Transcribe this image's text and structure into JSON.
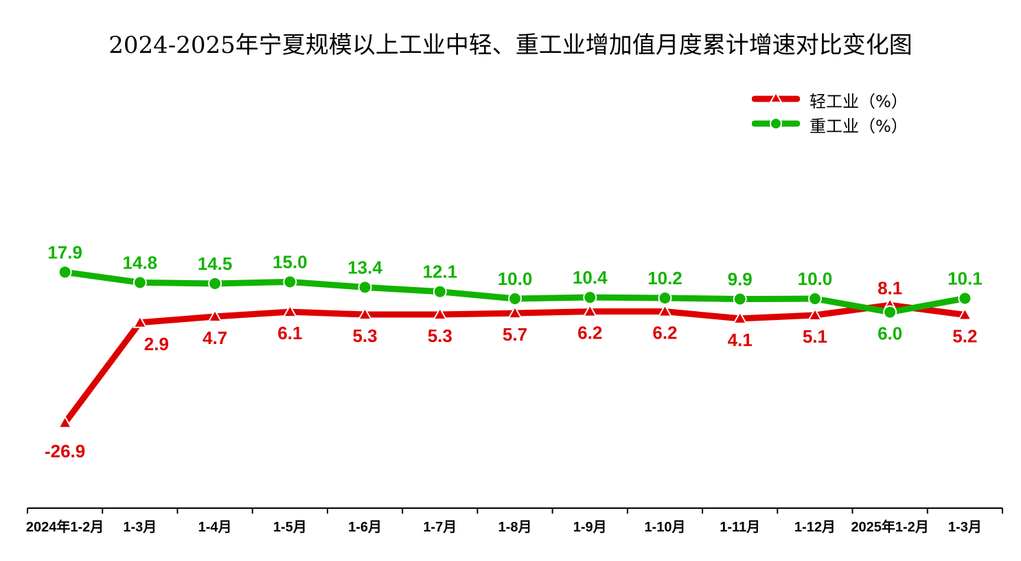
{
  "title": "2024-2025年宁夏规模以上工业中轻、重工业增加值月度累计增速对比变化图",
  "legend": {
    "light_label": "轻工业（%）",
    "heavy_label": "重工业（%）"
  },
  "colors": {
    "light": "#DD0000",
    "heavy": "#11B300",
    "axis": "#000000"
  },
  "chart_data": {
    "type": "line",
    "title": "2024-2025年宁夏规模以上工业中轻、重工业增加值月度累计增速对比变化图",
    "categories": [
      "2024年1-2月",
      "1-3月",
      "1-4月",
      "1-5月",
      "1-6月",
      "1-7月",
      "1-8月",
      "1-9月",
      "1-10月",
      "1-11月",
      "1-12月",
      "2025年1-2月",
      "1-3月"
    ],
    "series": [
      {
        "name": "轻工业（%）",
        "color": "#DD0000",
        "marker": "triangle",
        "values": [
          -26.9,
          2.9,
          4.7,
          6.1,
          5.3,
          5.3,
          5.7,
          6.2,
          6.2,
          4.1,
          5.1,
          8.1,
          5.2
        ],
        "labels": [
          "-26.9",
          "2.9",
          "4.7",
          "6.1",
          "5.3",
          "5.3",
          "5.7",
          "6.2",
          "6.2",
          "4.1",
          "5.1",
          "8.1",
          "5.2"
        ]
      },
      {
        "name": "重工业（%）",
        "color": "#11B300",
        "marker": "circle",
        "values": [
          17.9,
          14.8,
          14.5,
          15.0,
          13.4,
          12.1,
          10.0,
          10.4,
          10.2,
          9.9,
          10.0,
          6.0,
          10.1
        ],
        "labels": [
          "17.9",
          "14.8",
          "14.5",
          "15.0",
          "13.4",
          "12.1",
          "10.0",
          "10.4",
          "10.2",
          "9.9",
          "10.0",
          "6.0",
          "10.1"
        ]
      }
    ],
    "xlabel": "",
    "ylabel": "",
    "ylim": [
      -40,
      40
    ],
    "grid": false,
    "legend_position": "top-right"
  }
}
